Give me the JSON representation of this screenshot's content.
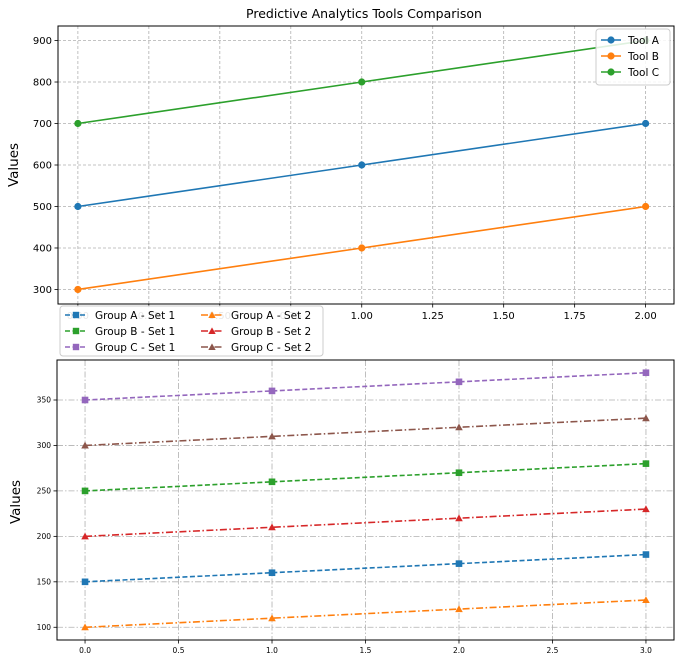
{
  "chart_data": [
    {
      "type": "line",
      "title": "Predictive Analytics Tools Comparison",
      "xlabel": "",
      "ylabel": "Values",
      "x": [
        0,
        1,
        2
      ],
      "xlim": [
        -0.07,
        2.1
      ],
      "ylim": [
        265,
        935
      ],
      "xticks": [
        0.0,
        0.25,
        0.5,
        0.75,
        1.0,
        1.25,
        1.5,
        1.75,
        2.0
      ],
      "yticks": [
        300,
        400,
        500,
        600,
        700,
        800,
        900
      ],
      "grid": true,
      "legend_position": "top-right",
      "series": [
        {
          "name": "Tool A",
          "values": [
            500,
            600,
            700
          ],
          "color": "#1f77b4",
          "marker": "circle",
          "linestyle": "solid"
        },
        {
          "name": "Tool B",
          "values": [
            300,
            400,
            500
          ],
          "color": "#ff7f0e",
          "marker": "circle",
          "linestyle": "solid"
        },
        {
          "name": "Tool C",
          "values": [
            700,
            800,
            900
          ],
          "color": "#2ca02c",
          "marker": "circle",
          "linestyle": "solid"
        }
      ]
    },
    {
      "type": "line",
      "title": "",
      "xlabel": "",
      "ylabel": "Values",
      "x": [
        0,
        1,
        2,
        3
      ],
      "xlim": [
        -0.15,
        3.15
      ],
      "ylim": [
        86,
        394
      ],
      "xticks": [
        0.0,
        0.5,
        1.0,
        1.5,
        2.0,
        2.5,
        3.0
      ],
      "yticks": [
        100,
        150,
        200,
        250,
        300,
        350
      ],
      "grid": true,
      "legend_position": "top-left (outside)",
      "series": [
        {
          "name": "Group A - Set 1",
          "values": [
            150,
            160,
            170,
            180
          ],
          "color": "#1f77b4",
          "marker": "square",
          "linestyle": "dashed"
        },
        {
          "name": "Group A - Set 2",
          "values": [
            100,
            110,
            120,
            130
          ],
          "color": "#ff7f0e",
          "marker": "triangle",
          "linestyle": "dashdot"
        },
        {
          "name": "Group B - Set 1",
          "values": [
            250,
            260,
            270,
            280
          ],
          "color": "#2ca02c",
          "marker": "square",
          "linestyle": "dashed"
        },
        {
          "name": "Group B - Set 2",
          "values": [
            200,
            210,
            220,
            230
          ],
          "color": "#d62728",
          "marker": "triangle",
          "linestyle": "dashdot"
        },
        {
          "name": "Group C - Set 1",
          "values": [
            350,
            360,
            370,
            380
          ],
          "color": "#9467bd",
          "marker": "square",
          "linestyle": "dashed"
        },
        {
          "name": "Group C - Set 2",
          "values": [
            300,
            310,
            320,
            330
          ],
          "color": "#8c564b",
          "marker": "triangle",
          "linestyle": "dashdot"
        }
      ]
    }
  ]
}
